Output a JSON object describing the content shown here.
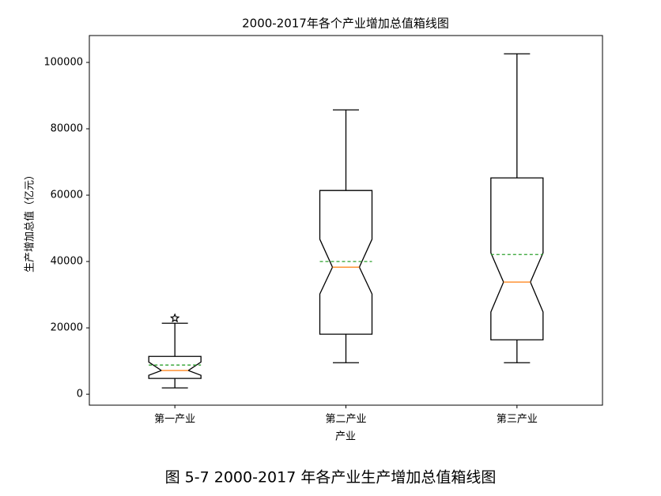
{
  "chart_data": {
    "type": "box",
    "title": "2000-2017年各个产业增加总值箱线图",
    "xlabel": "产业",
    "ylabel": "生产增加总值（亿元）",
    "categories": [
      "第一产业",
      "第二产业",
      "第三产业"
    ],
    "boxes": [
      {
        "whislo": 1900,
        "q1": 4760,
        "notch_lo": 5700,
        "median": 7140,
        "notch_hi": 9700,
        "q3": 11400,
        "whishi": 21400,
        "mean": 8800,
        "fliers": [
          22900
        ]
      },
      {
        "whislo": 9500,
        "q1": 18100,
        "notch_lo": 30200,
        "median": 38300,
        "notch_hi": 46700,
        "q3": 61400,
        "whishi": 85700,
        "mean": 40000,
        "fliers": []
      },
      {
        "whislo": 9500,
        "q1": 16400,
        "notch_lo": 24800,
        "median": 33800,
        "notch_hi": 42600,
        "q3": 65200,
        "whishi": 102600,
        "mean": 42100,
        "fliers": []
      }
    ],
    "box_color": "#000000",
    "median_color": "#ff7f0e",
    "mean_color": "#2ca02c",
    "ylim": [
      -3300,
      108100
    ],
    "yticks": [
      0,
      20000,
      40000,
      60000,
      80000,
      100000
    ]
  },
  "caption": "图 5-7 2000-2017 年各产业生产增加总值箱线图"
}
